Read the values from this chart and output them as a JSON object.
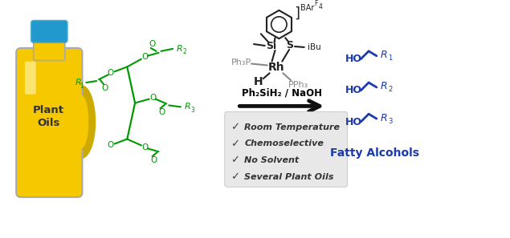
{
  "background_color": "#ffffff",
  "figsize": [
    6.35,
    2.97
  ],
  "dpi": 100,
  "bottle_label": "Plant\nOils",
  "bottle_color_body": "#F5C800",
  "bottle_color_cap": "#2299CC",
  "triglyceride_color": "#009900",
  "arrow_color": "#111111",
  "reagent_text": "Ph₂SiH₂ / NaOH",
  "checklist": [
    "Room Temperature",
    "Chemoselective",
    "No Solvent",
    "Several Plant Oils"
  ],
  "checklist_bg": "#e8e8e8",
  "product_label": "Fatty Alcohols",
  "product_color": "#1a3aad",
  "catalyst_gray": "#888888",
  "catalyst_black": "#222222"
}
